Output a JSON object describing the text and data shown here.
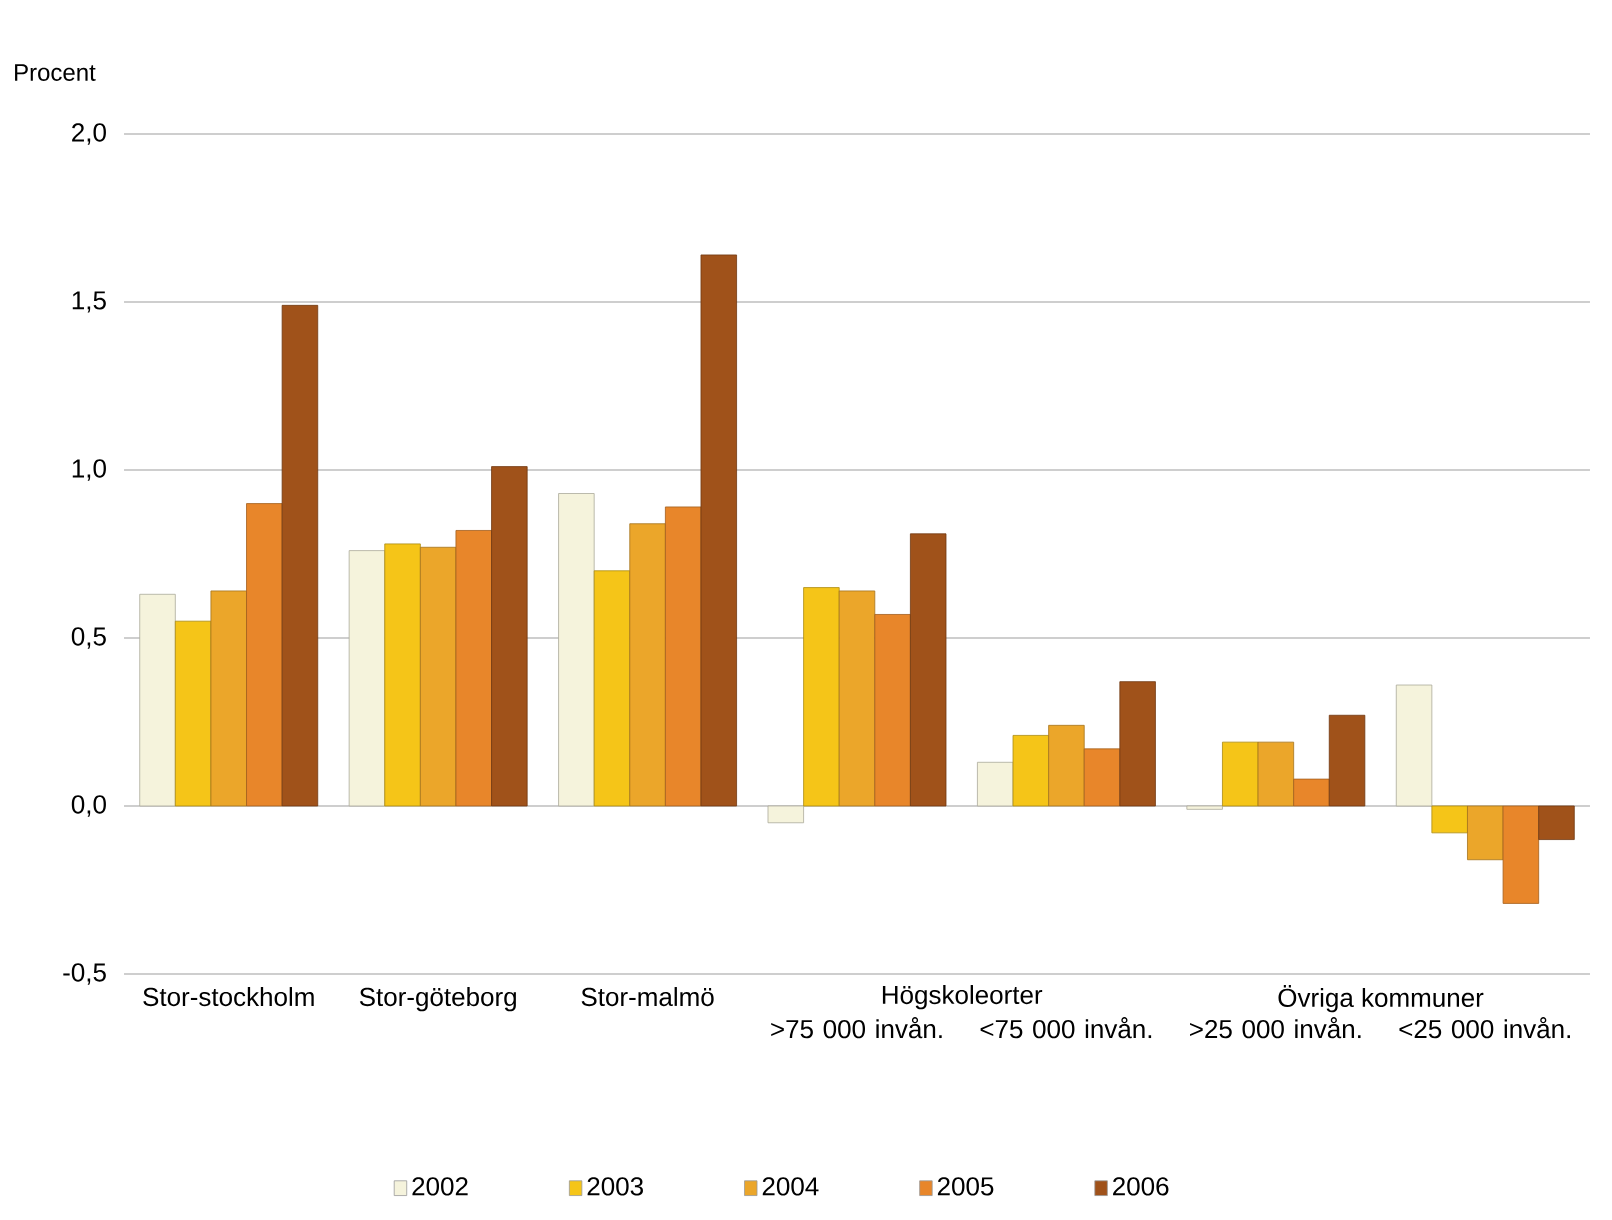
{
  "chart_data": {
    "type": "bar",
    "ylabel": "Procent",
    "categories": [
      "Stor-stockholm",
      "Stor-göteborg",
      "Stor-malmö",
      ">75 000 invån.",
      "<75 000 invån.",
      ">25 000 invån.",
      "<25 000 invån."
    ],
    "annotations": [
      "Högskoleorter",
      "Övriga kommuner"
    ],
    "series": [
      {
        "name": "2002",
        "color": "#f5f3dc",
        "values": [
          0.63,
          0.76,
          0.93,
          -0.05,
          0.13,
          -0.01,
          0.36
        ]
      },
      {
        "name": "2003",
        "color": "#f5c518",
        "values": [
          0.55,
          0.78,
          0.7,
          0.65,
          0.21,
          0.19,
          -0.08
        ]
      },
      {
        "name": "2004",
        "color": "#eba62a",
        "values": [
          0.64,
          0.77,
          0.84,
          0.64,
          0.24,
          0.19,
          -0.16
        ]
      },
      {
        "name": "2005",
        "color": "#e8862a",
        "values": [
          0.9,
          0.82,
          0.89,
          0.57,
          0.17,
          0.08,
          -0.29
        ]
      },
      {
        "name": "2006",
        "color": "#a0521a",
        "values": [
          1.49,
          1.01,
          1.64,
          0.81,
          0.37,
          0.27,
          -0.1
        ]
      }
    ],
    "ylim": [
      -0.5,
      2.0
    ],
    "yticks": [
      {
        "value": -0.5,
        "label": "-0,5"
      },
      {
        "value": 0.0,
        "label": "0,0"
      },
      {
        "value": 0.5,
        "label": "0,5"
      },
      {
        "value": 1.0,
        "label": "1,0"
      },
      {
        "value": 1.5,
        "label": "1,5"
      },
      {
        "value": 2.0,
        "label": "2,0"
      }
    ],
    "grid": "y",
    "legend": "bottom"
  }
}
